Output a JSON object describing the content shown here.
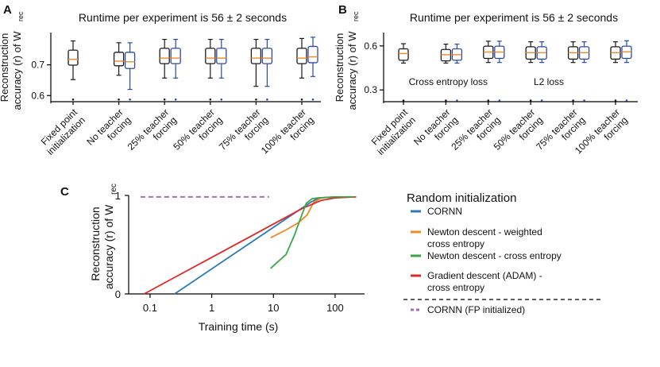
{
  "colors": {
    "black": "#1a1a1a",
    "blue": "#2a4aa8",
    "median": "#f08a24",
    "cornn": "#2a7ab8",
    "newton_weighted": "#f08a24",
    "newton_ce": "#3aa64a",
    "adam": "#e02828",
    "cornn_fp": "#a070b8"
  },
  "chart_data": [
    {
      "panel": "A",
      "type": "box",
      "title": "Runtime per experiment is 56 ± 2 seconds",
      "ylabel_main": "Reconstruction",
      "ylabel_second": "accuracy (r) of W",
      "ylabel_subscript": "rec",
      "ylim": [
        0.58,
        0.8
      ],
      "yticks": [
        0.6,
        0.7
      ],
      "ytick_labels": [
        "0.6",
        "0.7"
      ],
      "categories": [
        [
          "Fixed point",
          "initialization"
        ],
        [
          "No teacher",
          "forcing"
        ],
        [
          "25% teacher",
          "forcing"
        ],
        [
          "50% teacher",
          "forcing"
        ],
        [
          "75% teacher",
          "forcing"
        ],
        [
          "100% teacher",
          "forcing"
        ]
      ],
      "series": [
        {
          "name": "black",
          "color_key": "black",
          "boxes": [
            {
              "cat": 0,
              "min": 0.652,
              "q1": 0.699,
              "median": 0.718,
              "q3": 0.748,
              "max": 0.778,
              "outlier": 0.587
            },
            {
              "cat": 1,
              "min": 0.666,
              "q1": 0.697,
              "median": 0.712,
              "q3": 0.741,
              "max": 0.772,
              "outlier": 0.587
            },
            {
              "cat": 2,
              "min": 0.657,
              "q1": 0.704,
              "median": 0.722,
              "q3": 0.754,
              "max": 0.783,
              "outlier": 0.587
            },
            {
              "cat": 3,
              "min": 0.657,
              "q1": 0.704,
              "median": 0.722,
              "q3": 0.754,
              "max": 0.783,
              "outlier": 0.587
            },
            {
              "cat": 4,
              "min": 0.63,
              "q1": 0.704,
              "median": 0.722,
              "q3": 0.754,
              "max": 0.783,
              "outlier": 0.587
            },
            {
              "cat": 5,
              "min": 0.657,
              "q1": 0.704,
              "median": 0.722,
              "q3": 0.754,
              "max": 0.786,
              "outlier": 0.587
            }
          ]
        },
        {
          "name": "blue",
          "color_key": "blue",
          "boxes": [
            {
              "cat": 1,
              "min": 0.62,
              "q1": 0.688,
              "median": 0.71,
              "q3": 0.741,
              "max": 0.772,
              "outlier": 0.587
            },
            {
              "cat": 2,
              "min": 0.657,
              "q1": 0.704,
              "median": 0.722,
              "q3": 0.754,
              "max": 0.783,
              "outlier": 0.587
            },
            {
              "cat": 3,
              "min": 0.657,
              "q1": 0.704,
              "median": 0.722,
              "q3": 0.754,
              "max": 0.783,
              "outlier": 0.587
            },
            {
              "cat": 4,
              "min": 0.63,
              "q1": 0.704,
              "median": 0.722,
              "q3": 0.754,
              "max": 0.783,
              "outlier": 0.587
            },
            {
              "cat": 5,
              "min": 0.662,
              "q1": 0.707,
              "median": 0.726,
              "q3": 0.76,
              "max": 0.79,
              "outlier": 0.587
            }
          ]
        }
      ]
    },
    {
      "panel": "B",
      "type": "box",
      "title": "Runtime per experiment is 56 ± 2 seconds",
      "ylabel_main": "Reconstruction",
      "ylabel_second": "accuracy (r) of W",
      "ylabel_subscript": "rec",
      "ylim": [
        0.22,
        0.68
      ],
      "yticks": [
        0.3,
        0.6
      ],
      "ytick_labels": [
        "0.3",
        "0.6"
      ],
      "legend": [
        {
          "label": "Cross entropy loss",
          "color_key": "blue"
        },
        {
          "label": "L2 loss",
          "color_key": "black"
        }
      ],
      "categories": [
        [
          "Fixed point",
          "initialization"
        ],
        [
          "No teacher",
          "forcing"
        ],
        [
          "25% teacher",
          "forcing"
        ],
        [
          "50% teacher",
          "forcing"
        ],
        [
          "75% teacher",
          "forcing"
        ],
        [
          "100% teacher",
          "forcing"
        ]
      ],
      "series": [
        {
          "name": "black",
          "color_key": "black",
          "boxes": [
            {
              "cat": 0,
              "min": 0.483,
              "q1": 0.502,
              "median": 0.548,
              "q3": 0.58,
              "max": 0.615,
              "outlier": 0.228
            },
            {
              "cat": 1,
              "min": 0.483,
              "q1": 0.498,
              "median": 0.54,
              "q3": 0.576,
              "max": 0.612,
              "outlier": 0.228
            },
            {
              "cat": 2,
              "min": 0.487,
              "q1": 0.515,
              "median": 0.558,
              "q3": 0.598,
              "max": 0.632,
              "outlier": 0.228
            },
            {
              "cat": 3,
              "min": 0.487,
              "q1": 0.51,
              "median": 0.554,
              "q3": 0.594,
              "max": 0.628,
              "outlier": 0.228
            },
            {
              "cat": 4,
              "min": 0.487,
              "q1": 0.51,
              "median": 0.554,
              "q3": 0.594,
              "max": 0.628,
              "outlier": 0.228
            },
            {
              "cat": 5,
              "min": 0.487,
              "q1": 0.51,
              "median": 0.554,
              "q3": 0.594,
              "max": 0.628,
              "outlier": 0.228
            }
          ]
        },
        {
          "name": "blue",
          "color_key": "blue",
          "boxes": [
            {
              "cat": 1,
              "min": 0.483,
              "q1": 0.502,
              "median": 0.54,
              "q3": 0.58,
              "max": 0.612,
              "outlier": 0.228
            },
            {
              "cat": 2,
              "min": 0.487,
              "q1": 0.515,
              "median": 0.558,
              "q3": 0.598,
              "max": 0.632,
              "outlier": 0.228
            },
            {
              "cat": 3,
              "min": 0.487,
              "q1": 0.51,
              "median": 0.554,
              "q3": 0.594,
              "max": 0.628,
              "outlier": 0.228
            },
            {
              "cat": 4,
              "min": 0.487,
              "q1": 0.51,
              "median": 0.554,
              "q3": 0.594,
              "max": 0.628,
              "outlier": 0.228
            },
            {
              "cat": 5,
              "min": 0.487,
              "q1": 0.515,
              "median": 0.56,
              "q3": 0.598,
              "max": 0.635,
              "outlier": 0.228
            }
          ]
        }
      ]
    },
    {
      "panel": "C",
      "type": "line",
      "xscale": "log",
      "xlabel": "Training time (s)",
      "ylabel_main": "Reconstruction",
      "ylabel_second": "accuracy (r) of W",
      "ylabel_subscript": "rec",
      "xlim": [
        0.045,
        300
      ],
      "ylim": [
        0,
        1
      ],
      "xticks": [
        0.1,
        1,
        10,
        100
      ],
      "xtick_labels": [
        "0.1",
        "1",
        "10",
        "100"
      ],
      "yticks": [
        0,
        1
      ],
      "ytick_labels": [
        "0",
        "1"
      ],
      "legend_title": "Random initialization",
      "series": [
        {
          "name": "CORNN",
          "label_lines": [
            "CORNN"
          ],
          "color_key": "cornn",
          "dashed": false,
          "x": [
            0.25,
            40,
            55,
            100,
            200
          ],
          "y": [
            0,
            0.93,
            0.975,
            0.985,
            0.985
          ]
        },
        {
          "name": "Newton descent - weighted cross entropy",
          "label_lines": [
            "Newton descent - weighted",
            "cross entropy"
          ],
          "color_key": "newton_weighted",
          "dashed": false,
          "x": [
            9,
            15,
            25,
            35,
            45,
            60,
            100,
            200
          ],
          "y": [
            0.57,
            0.64,
            0.72,
            0.8,
            0.93,
            0.975,
            0.985,
            0.985
          ]
        },
        {
          "name": "Newton descent - cross entropy",
          "label_lines": [
            "Newton descent - cross entropy"
          ],
          "color_key": "newton_ce",
          "dashed": false,
          "x": [
            9,
            16,
            22,
            28,
            34,
            42,
            52,
            100,
            200
          ],
          "y": [
            0.26,
            0.4,
            0.6,
            0.78,
            0.92,
            0.965,
            0.975,
            0.985,
            0.985
          ]
        },
        {
          "name": "Gradient descent (ADAM) - cross entropy",
          "label_lines": [
            "Gradient descent (ADAM) -",
            "cross entropy"
          ],
          "color_key": "adam",
          "dashed": false,
          "x": [
            0.08,
            30,
            60,
            100,
            220
          ],
          "y": [
            0,
            0.87,
            0.95,
            0.975,
            0.985
          ]
        },
        {
          "name": "CORNN (FP initialized)",
          "label_lines": [
            "CORNN (FP initialized)"
          ],
          "color_key": "cornn_fp",
          "dashed": true,
          "x": [
            0.07,
            8.5
          ],
          "y": [
            0.985,
            0.985
          ]
        }
      ]
    }
  ]
}
